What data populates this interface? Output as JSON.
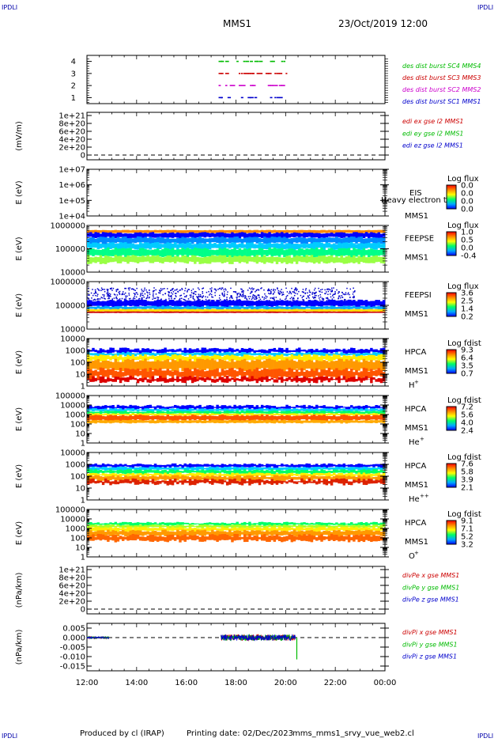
{
  "header": {
    "corner_left_top": "IPDLI",
    "corner_right_top": "IPDLI",
    "corner_left_bottom": "IPDLI",
    "corner_right_bottom": "IPDLI",
    "title": "MMS1",
    "datetime": "23/Oct/2019 12:00"
  },
  "footer": {
    "produced_by": "Produced by cl (IRAP)",
    "printing_date": "Printing date: 02/Dec/2023",
    "script": "mms_mms1_srvy_vue_web2.cl"
  },
  "chart_data": [
    {
      "id": "burst",
      "type": "scatter",
      "ylim": [
        0.5,
        4.5
      ],
      "yticks": [
        "1",
        "2",
        "3",
        "4"
      ],
      "legend": [
        {
          "text": "des dist burst SC1 MMS1",
          "color": "#0000cc",
          "y": 1
        },
        {
          "text": "des dist burst SC2 MMS2",
          "color": "#cc00cc",
          "y": 2
        },
        {
          "text": "des dist burst SC3 MMS3",
          "color": "#cc0000",
          "y": 3
        },
        {
          "text": "des dist burst SC4 MMS4",
          "color": "#00bb00",
          "y": 4
        }
      ],
      "x_range": [
        17.3,
        20.0
      ]
    },
    {
      "id": "edi",
      "type": "line",
      "ylabel": "(mV/m)",
      "yticks": [
        "1e+21",
        "8e+20",
        "6e+20",
        "4e+20",
        "2e+20",
        "0"
      ],
      "legend": [
        {
          "text": "edi ex gse l2 MMS1",
          "color": "#cc0000"
        },
        {
          "text": "edi ey gse l2 MMS1",
          "color": "#00bb00"
        },
        {
          "text": "edi ez gse l2 MMS1",
          "color": "#0000cc"
        }
      ]
    },
    {
      "id": "eis",
      "type": "heatmap",
      "ylabel": "E (eV)",
      "yticks": [
        "1e+07",
        "1e+06",
        "1e+05",
        "1e+04"
      ],
      "right_labels": [
        "EIS",
        "MMS1"
      ],
      "overlay_text": "Heavy electron to",
      "cbar_title": "Log flux",
      "cbar_ticks": [
        "0.0",
        "0.0",
        "0.0",
        "0.0"
      ]
    },
    {
      "id": "feepse",
      "type": "heatmap",
      "ylabel": "E (eV)",
      "yticks": [
        "1000000",
        "100000",
        "10000"
      ],
      "right_labels": [
        "FEEPSE",
        "MMS1"
      ],
      "cbar_title": "Log flux",
      "cbar_ticks": [
        "1.0",
        "0.5",
        "0.0",
        "-0.4"
      ]
    },
    {
      "id": "feepsi",
      "type": "heatmap",
      "ylabel": "E (eV)",
      "yticks": [
        "1000000",
        "100000",
        "10000"
      ],
      "right_labels": [
        "FEEPSI",
        "MMS1"
      ],
      "cbar_title": "Log flux",
      "cbar_ticks": [
        "3.6",
        "2.5",
        "1.4",
        "0.2"
      ]
    },
    {
      "id": "hpca_h",
      "type": "heatmap",
      "ylabel": "E (eV)",
      "yticks": [
        "10000",
        "1000",
        "100",
        "10",
        "1"
      ],
      "right_labels": [
        "HPCA",
        "MMS1"
      ],
      "species": "H",
      "species_sup": "+",
      "cbar_title": "Log fdist",
      "cbar_ticks": [
        "9.3",
        "6.4",
        "3.5",
        "0.7"
      ]
    },
    {
      "id": "hpca_he",
      "type": "heatmap",
      "ylabel": "E (eV)",
      "yticks": [
        "100000",
        "10000",
        "1000",
        "100",
        "10",
        "1"
      ],
      "right_labels": [
        "HPCA",
        "MMS1"
      ],
      "species": "He",
      "species_sup": "+",
      "cbar_title": "Log fdist",
      "cbar_ticks": [
        "7.2",
        "5.6",
        "4.0",
        "2.4"
      ]
    },
    {
      "id": "hpca_hepp",
      "type": "heatmap",
      "ylabel": "E (eV)",
      "yticks": [
        "10000",
        "1000",
        "100",
        "10",
        "1"
      ],
      "right_labels": [
        "HPCA",
        "MMS1"
      ],
      "species": "He",
      "species_sup": "++",
      "cbar_title": "Log fdist",
      "cbar_ticks": [
        "7.6",
        "5.8",
        "3.9",
        "2.1"
      ]
    },
    {
      "id": "hpca_o",
      "type": "heatmap",
      "ylabel": "E (eV)",
      "yticks": [
        "100000",
        "10000",
        "1000",
        "100",
        "10",
        "1"
      ],
      "right_labels": [
        "HPCA",
        "MMS1"
      ],
      "species": "O",
      "species_sup": "+",
      "cbar_title": "Log fdist",
      "cbar_ticks": [
        "9.1",
        "7.1",
        "5.2",
        "3.2"
      ]
    },
    {
      "id": "divpe",
      "type": "line",
      "ylabel": "(nPa/km)",
      "yticks": [
        "1e+21",
        "8e+20",
        "6e+20",
        "4e+20",
        "2e+20",
        "0"
      ],
      "legend": [
        {
          "text": "divPe x gse MMS1",
          "color": "#cc0000"
        },
        {
          "text": "divPe y gse MMS1",
          "color": "#00bb00"
        },
        {
          "text": "divPe z gse MMS1",
          "color": "#0000cc"
        }
      ]
    },
    {
      "id": "divpi",
      "type": "line",
      "ylabel": "(nPa/km)",
      "ylim": [
        -0.0175,
        0.0075
      ],
      "yticks": [
        "0.005",
        "0.000",
        "-0.005",
        "-0.010",
        "-0.015"
      ],
      "legend": [
        {
          "text": "divPi x gse MMS1",
          "color": "#cc0000"
        },
        {
          "text": "divPi y gse MMS1",
          "color": "#00bb00"
        },
        {
          "text": "divPi z gse MMS1",
          "color": "#0000cc"
        }
      ],
      "series_ranges": [
        [
          12.0,
          12.9
        ],
        [
          17.4,
          20.4
        ]
      ],
      "spike": {
        "x": 20.45,
        "y": -0.0115
      }
    }
  ],
  "time_axis": {
    "range_hours": [
      12,
      24
    ],
    "ticks": [
      "12:00",
      "14:00",
      "16:00",
      "18:00",
      "20:00",
      "22:00",
      "00:00"
    ]
  },
  "colors": {
    "cbar_stops": [
      "#0000ff",
      "#00aaff",
      "#00ff66",
      "#ffff00",
      "#ff8800",
      "#ff0000"
    ]
  }
}
